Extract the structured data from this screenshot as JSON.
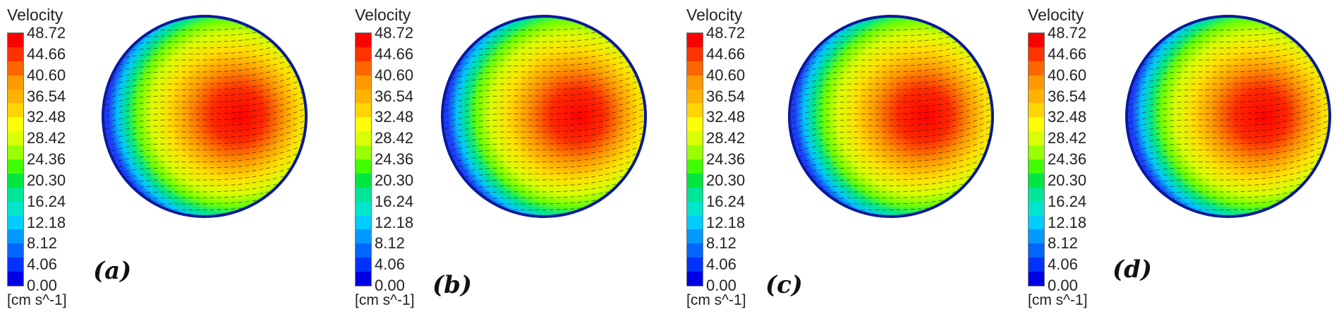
{
  "colors": [
    "#ff0000",
    "#ff3300",
    "#ff6600",
    "#ff9900",
    "#ffb300",
    "#ffd500",
    "#ffff00",
    "#d9ff00",
    "#99ff00",
    "#40ff00",
    "#00e640",
    "#00e699",
    "#00e6cc",
    "#00ccff",
    "#0099ff",
    "#0066ff",
    "#0033ff",
    "#0000e6"
  ],
  "panels": [
    {
      "title": "Velocity",
      "ticks": [
        "48.72",
        "44.66",
        "40.60",
        "36.54",
        "32.48",
        "28.42",
        "24.36",
        "20.30",
        "16.24",
        "12.18",
        "8.12",
        "4.06",
        "0.00"
      ],
      "units": "[cm s^-1]",
      "label": "(a)"
    },
    {
      "title": "Velocity",
      "ticks": [
        "48.72",
        "44.66",
        "40.60",
        "36.54",
        "32.48",
        "28.42",
        "24.36",
        "20.30",
        "16.24",
        "12.18",
        "8.12",
        "4.06",
        "0.00"
      ],
      "units": "[cm s^-1]",
      "label": "(b)"
    },
    {
      "title": "Velocity",
      "ticks": [
        "48.72",
        "44.66",
        "40.60",
        "36.54",
        "32.48",
        "28.42",
        "24.36",
        "20.30",
        "16.24",
        "12.18",
        "8.12",
        "4.06",
        "0.00"
      ],
      "units": "[cm s^-1]",
      "label": "(c)"
    },
    {
      "title": "Velocity",
      "ticks": [
        "48.72",
        "44.66",
        "40.60",
        "36.54",
        "32.48",
        "28.42",
        "24.36",
        "20.30",
        "16.24",
        "12.18",
        "8.12",
        "4.06",
        "0.00"
      ],
      "units": "[cm s^-1]",
      "label": "(d)"
    }
  ]
}
